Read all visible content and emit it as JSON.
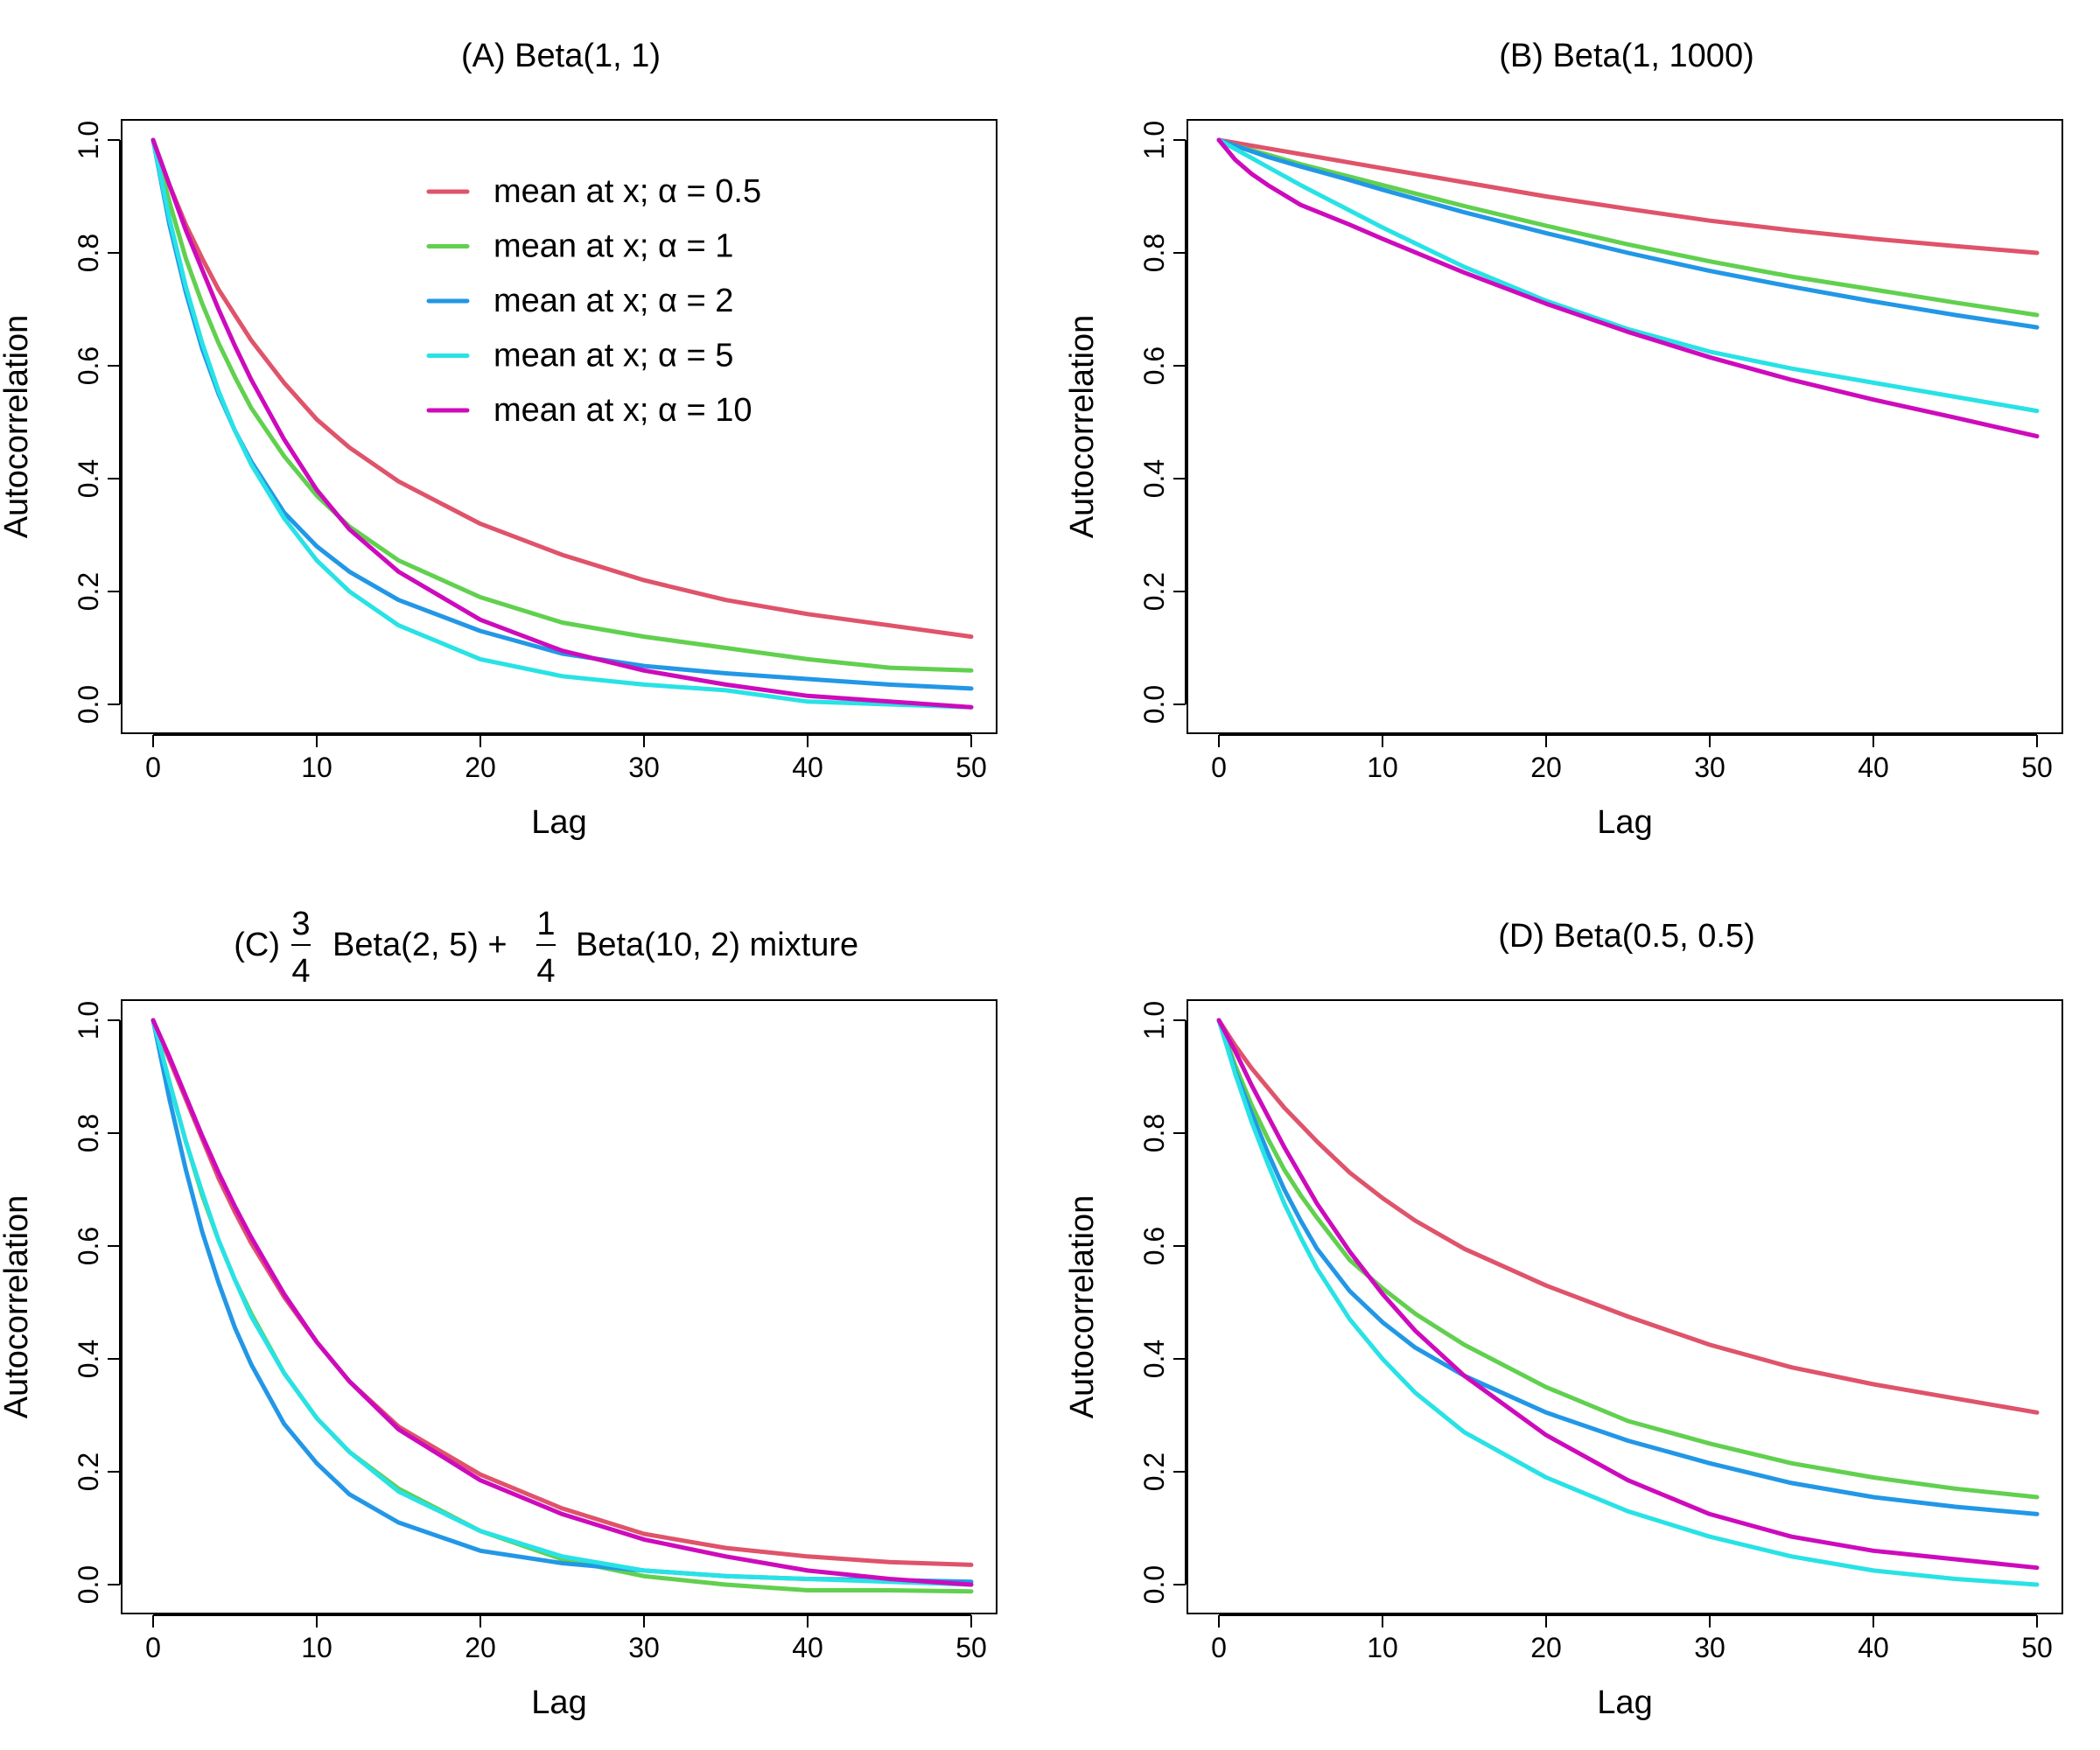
{
  "colors": {
    "alpha_0_5": "#DF536B",
    "alpha_1": "#61D04F",
    "alpha_2": "#2297E6",
    "alpha_5": "#28E2E5",
    "alpha_10": "#CD0BBC"
  },
  "legend": {
    "placement": "top-right",
    "entries": [
      "mean at x; α = 0.5",
      "mean at x; α = 1",
      "mean at x; α = 2",
      "mean at x; α = 5",
      "mean at x; α = 10"
    ]
  },
  "chart_data": [
    {
      "id": "A",
      "type": "line",
      "title": "(A) Beta(1, 1)",
      "xlabel": "Lag",
      "ylabel": "Autocorrelation",
      "xlim": [
        0,
        50
      ],
      "ylim": [
        0,
        1
      ],
      "xticks": [
        "0",
        "10",
        "20",
        "30",
        "40",
        "50"
      ],
      "yticks": [
        "0.0",
        "0.2",
        "0.4",
        "0.6",
        "0.8",
        "1.0"
      ],
      "grid": false,
      "legend": true,
      "x": [
        0,
        1,
        2,
        3,
        4,
        5,
        6,
        8,
        10,
        12,
        15,
        20,
        25,
        30,
        35,
        40,
        45,
        50
      ],
      "series": [
        {
          "color_key": "alpha_0_5",
          "values": [
            1.0,
            0.92,
            0.85,
            0.79,
            0.735,
            0.69,
            0.645,
            0.57,
            0.505,
            0.455,
            0.395,
            0.32,
            0.265,
            0.22,
            0.185,
            0.16,
            0.14,
            0.12
          ]
        },
        {
          "color_key": "alpha_1",
          "values": [
            1.0,
            0.89,
            0.79,
            0.71,
            0.64,
            0.58,
            0.525,
            0.44,
            0.37,
            0.315,
            0.255,
            0.19,
            0.145,
            0.12,
            0.1,
            0.08,
            0.065,
            0.06
          ]
        },
        {
          "color_key": "alpha_2",
          "values": [
            1.0,
            0.85,
            0.73,
            0.63,
            0.55,
            0.485,
            0.43,
            0.34,
            0.28,
            0.235,
            0.185,
            0.13,
            0.09,
            0.068,
            0.055,
            0.045,
            0.035,
            0.028
          ]
        },
        {
          "color_key": "alpha_5",
          "values": [
            1.0,
            0.86,
            0.74,
            0.64,
            0.555,
            0.485,
            0.425,
            0.33,
            0.255,
            0.2,
            0.14,
            0.08,
            0.05,
            0.035,
            0.025,
            0.005,
            0.0,
            -0.005
          ]
        },
        {
          "color_key": "alpha_10",
          "values": [
            1.0,
            0.92,
            0.84,
            0.77,
            0.7,
            0.635,
            0.575,
            0.47,
            0.38,
            0.31,
            0.235,
            0.15,
            0.095,
            0.06,
            0.035,
            0.015,
            0.005,
            -0.005
          ]
        }
      ]
    },
    {
      "id": "B",
      "type": "line",
      "title": "(B) Beta(1, 1000)",
      "xlabel": "Lag",
      "ylabel": "Autocorrelation",
      "xlim": [
        0,
        50
      ],
      "ylim": [
        0,
        1
      ],
      "xticks": [
        "0",
        "10",
        "20",
        "30",
        "40",
        "50"
      ],
      "yticks": [
        "0.0",
        "0.2",
        "0.4",
        "0.6",
        "0.8",
        "1.0"
      ],
      "grid": false,
      "legend": false,
      "x": [
        0,
        1,
        2,
        3,
        5,
        8,
        10,
        15,
        20,
        25,
        30,
        35,
        40,
        45,
        50
      ],
      "series": [
        {
          "color_key": "alpha_0_5",
          "values": [
            1.0,
            0.995,
            0.99,
            0.985,
            0.975,
            0.96,
            0.95,
            0.925,
            0.9,
            0.878,
            0.857,
            0.84,
            0.825,
            0.812,
            0.8
          ]
        },
        {
          "color_key": "alpha_1",
          "values": [
            1.0,
            0.99,
            0.982,
            0.974,
            0.957,
            0.935,
            0.92,
            0.883,
            0.848,
            0.815,
            0.785,
            0.758,
            0.735,
            0.712,
            0.69
          ]
        },
        {
          "color_key": "alpha_2",
          "values": [
            1.0,
            0.99,
            0.98,
            0.97,
            0.953,
            0.929,
            0.912,
            0.872,
            0.835,
            0.8,
            0.768,
            0.74,
            0.714,
            0.69,
            0.668
          ]
        },
        {
          "color_key": "alpha_5",
          "values": [
            1.0,
            0.984,
            0.968,
            0.952,
            0.92,
            0.875,
            0.845,
            0.775,
            0.715,
            0.665,
            0.625,
            0.595,
            0.57,
            0.545,
            0.52
          ]
        },
        {
          "color_key": "alpha_10",
          "values": [
            1.0,
            0.965,
            0.94,
            0.92,
            0.885,
            0.85,
            0.825,
            0.765,
            0.71,
            0.66,
            0.615,
            0.575,
            0.54,
            0.508,
            0.475
          ]
        }
      ]
    },
    {
      "id": "C",
      "type": "line",
      "title_parts": {
        "prefix": "(C)",
        "frac1_num": "3",
        "frac1_den": "4",
        "middle": "Beta(2, 5) +",
        "frac2_num": "1",
        "frac2_den": "4",
        "suffix": "Beta(10, 2) mixture"
      },
      "xlabel": "Lag",
      "ylabel": "Autocorrelation",
      "xlim": [
        0,
        50
      ],
      "ylim": [
        0,
        1
      ],
      "xticks": [
        "0",
        "10",
        "20",
        "30",
        "40",
        "50"
      ],
      "yticks": [
        "0.0",
        "0.2",
        "0.4",
        "0.6",
        "0.8",
        "1.0"
      ],
      "grid": false,
      "legend": false,
      "x": [
        0,
        1,
        2,
        3,
        4,
        5,
        6,
        8,
        10,
        12,
        15,
        20,
        25,
        30,
        35,
        40,
        45,
        50
      ],
      "series": [
        {
          "color_key": "alpha_0_5",
          "values": [
            1.0,
            0.93,
            0.86,
            0.79,
            0.72,
            0.66,
            0.605,
            0.51,
            0.43,
            0.36,
            0.28,
            0.195,
            0.135,
            0.09,
            0.065,
            0.05,
            0.04,
            0.035
          ]
        },
        {
          "color_key": "alpha_1",
          "values": [
            1.0,
            0.89,
            0.785,
            0.69,
            0.61,
            0.54,
            0.48,
            0.375,
            0.295,
            0.235,
            0.17,
            0.095,
            0.045,
            0.015,
            0.0,
            -0.01,
            -0.01,
            -0.012
          ]
        },
        {
          "color_key": "alpha_2",
          "values": [
            1.0,
            0.86,
            0.735,
            0.625,
            0.535,
            0.455,
            0.39,
            0.285,
            0.215,
            0.16,
            0.11,
            0.06,
            0.038,
            0.025,
            0.015,
            0.01,
            0.008,
            0.005
          ]
        },
        {
          "color_key": "alpha_5",
          "values": [
            1.0,
            0.89,
            0.785,
            0.695,
            0.61,
            0.54,
            0.475,
            0.375,
            0.295,
            0.235,
            0.165,
            0.095,
            0.05,
            0.025,
            0.015,
            0.01,
            0.005,
            0.0
          ]
        },
        {
          "color_key": "alpha_10",
          "values": [
            1.0,
            0.935,
            0.865,
            0.795,
            0.73,
            0.67,
            0.615,
            0.515,
            0.43,
            0.36,
            0.275,
            0.185,
            0.125,
            0.08,
            0.05,
            0.025,
            0.01,
            0.0
          ]
        }
      ]
    },
    {
      "id": "D",
      "type": "line",
      "title": "(D) Beta(0.5, 0.5)",
      "xlabel": "Lag",
      "ylabel": "Autocorrelation",
      "xlim": [
        0,
        50
      ],
      "ylim": [
        0,
        1
      ],
      "xticks": [
        "0",
        "10",
        "20",
        "30",
        "40",
        "50"
      ],
      "yticks": [
        "0.0",
        "0.2",
        "0.4",
        "0.6",
        "0.8",
        "1.0"
      ],
      "grid": false,
      "legend": false,
      "x": [
        0,
        1,
        2,
        3,
        4,
        5,
        6,
        8,
        10,
        12,
        15,
        20,
        25,
        30,
        35,
        40,
        45,
        50
      ],
      "series": [
        {
          "color_key": "alpha_0_5",
          "values": [
            1.0,
            0.955,
            0.915,
            0.88,
            0.845,
            0.815,
            0.785,
            0.73,
            0.685,
            0.645,
            0.595,
            0.53,
            0.475,
            0.425,
            0.385,
            0.355,
            0.33,
            0.305
          ]
        },
        {
          "color_key": "alpha_1",
          "values": [
            1.0,
            0.92,
            0.85,
            0.79,
            0.735,
            0.69,
            0.65,
            0.575,
            0.525,
            0.48,
            0.425,
            0.35,
            0.29,
            0.25,
            0.215,
            0.19,
            0.17,
            0.155
          ]
        },
        {
          "color_key": "alpha_2",
          "values": [
            1.0,
            0.91,
            0.835,
            0.765,
            0.7,
            0.645,
            0.595,
            0.52,
            0.465,
            0.42,
            0.37,
            0.305,
            0.255,
            0.215,
            0.18,
            0.155,
            0.138,
            0.125
          ]
        },
        {
          "color_key": "alpha_5",
          "values": [
            1.0,
            0.905,
            0.82,
            0.745,
            0.675,
            0.615,
            0.56,
            0.47,
            0.4,
            0.34,
            0.27,
            0.19,
            0.13,
            0.085,
            0.05,
            0.025,
            0.01,
            0.0
          ]
        },
        {
          "color_key": "alpha_10",
          "values": [
            1.0,
            0.945,
            0.885,
            0.83,
            0.775,
            0.725,
            0.675,
            0.59,
            0.515,
            0.45,
            0.37,
            0.265,
            0.185,
            0.125,
            0.085,
            0.06,
            0.045,
            0.03
          ]
        }
      ]
    }
  ]
}
